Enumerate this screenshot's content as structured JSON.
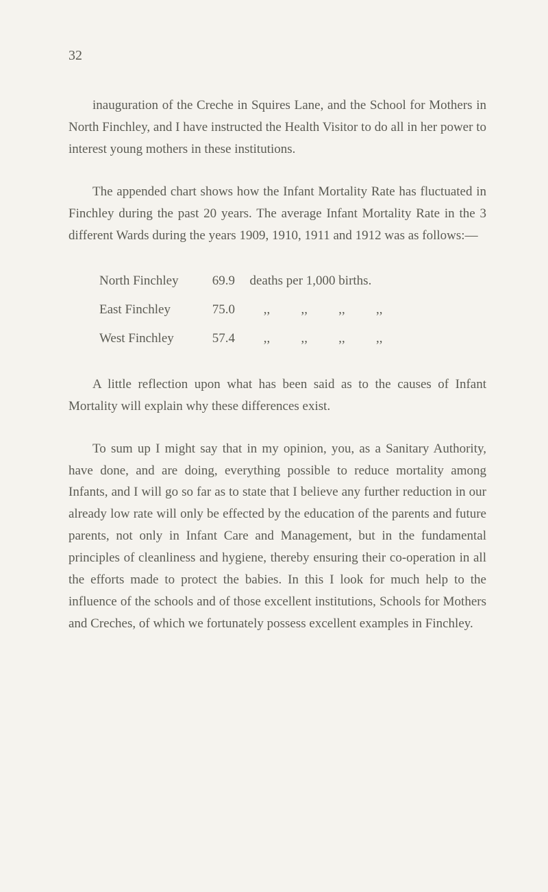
{
  "page_number": "32",
  "paragraph1": "inauguration of the Creche in Squires Lane, and the School for Mothers in North Finchley, and I have instructed the Health Visitor to do all in her power to interest young mothers in these institutions.",
  "paragraph2": "The appended chart shows how the Infant Mortality Rate has fluctuated in Finchley during the past 20 years. The average Infant Mortality Rate in the 3 different Wards during the years 1909, 1910, 1911 and 1912 was as follows:—",
  "mortality_data": {
    "rows": [
      {
        "region": "North Finchley",
        "value": "69.9",
        "suffix": "deaths per 1,000 births."
      },
      {
        "region": "East Finchley",
        "value": "75.0",
        "dittos": [
          ",,",
          ",,",
          ",,",
          ",,"
        ]
      },
      {
        "region": "West Finchley",
        "value": "57.4",
        "dittos": [
          ",,",
          ",,",
          ",,",
          ",,"
        ]
      }
    ]
  },
  "paragraph3": "A little reflection upon what has been said as to the causes of Infant Mortality will explain why these differences exist.",
  "paragraph4": "To sum up I might say that in my opinion, you, as a Sanitary Authority, have done, and are doing, everything possible to reduce mortality among Infants, and I will go so far as to state that I believe any further reduction in our already low rate will only be effected by the education of the parents and future parents, not only in Infant Care and Management, but in the fundamental principles of cleanliness and hygiene, thereby ensuring their co-operation in all the efforts made to protect the babies. In this I look for much help to the influence of the schools and of those excellent institutions, Schools for Mothers and Creches, of which we fortunately possess excellent examples in Finchley.",
  "colors": {
    "background": "#f5f3ee",
    "text": "#5a5a52"
  },
  "typography": {
    "body_fontsize": 19,
    "line_height": 1.68,
    "text_indent": 35
  }
}
